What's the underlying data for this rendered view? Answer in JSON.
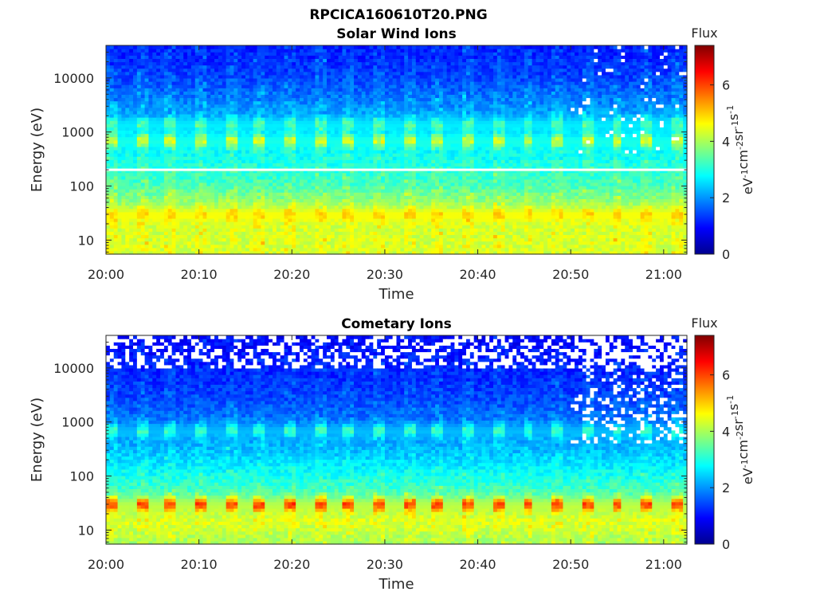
{
  "figure": {
    "title": "RPCICA160610T20.PNG"
  },
  "colormap": {
    "name": "jet",
    "stops": [
      "#00008f",
      "#0000ff",
      "#0080ff",
      "#00ffff",
      "#80ff80",
      "#ffff00",
      "#ff8000",
      "#ff0000",
      "#800000"
    ]
  },
  "chart_data": [
    {
      "type": "heatmap",
      "title": "Solar Wind Ions",
      "xlabel": "Time",
      "ylabel": "Energy (eV)",
      "yscale": "log",
      "x_ticks": [
        "20:00",
        "20:10",
        "20:20",
        "20:30",
        "20:40",
        "20:50",
        "21:00"
      ],
      "x_tick_minutes": [
        0,
        10,
        20,
        30,
        40,
        50,
        60
      ],
      "xlim_minutes": [
        0,
        62.5
      ],
      "y_ticks": [
        "10",
        "100",
        "1000",
        "10000"
      ],
      "y_tick_values": [
        10,
        100,
        1000,
        10000
      ],
      "ylim": [
        5.5,
        40000
      ],
      "colorbar": {
        "label_top": "Flux",
        "units": "eV-1cm-2sr-1s-1",
        "ticks": [
          "0",
          "2",
          "4",
          "6"
        ],
        "tick_values": [
          0,
          2,
          4,
          6
        ],
        "range": [
          0,
          7.4
        ]
      },
      "features": {
        "background_profile": [
          {
            "energy_eV": 6,
            "flux": 4.3
          },
          {
            "energy_eV": 30,
            "flux": 4.3
          },
          {
            "energy_eV": 100,
            "flux": 3.3
          },
          {
            "energy_eV": 1000,
            "flux": 2.5
          },
          {
            "energy_eV": 10000,
            "flux": 1.4
          },
          {
            "energy_eV": 40000,
            "flux": 1.1
          }
        ],
        "white_line_energy_eV": 200,
        "bands": [
          {
            "center_energy_eV": 700,
            "peak_flux": 4.2,
            "periodic": true
          },
          {
            "center_energy_eV": 1400,
            "peak_flux": 3.3,
            "periodic": true
          },
          {
            "center_energy_eV": 30,
            "peak_flux": 4.9,
            "periodic": true
          }
        ],
        "sweep_period_minutes": 3.2,
        "sparse_after_minutes": 50
      }
    },
    {
      "type": "heatmap",
      "title": "Cometary Ions",
      "xlabel": "Time",
      "ylabel": "Energy (eV)",
      "yscale": "log",
      "x_ticks": [
        "20:00",
        "20:10",
        "20:20",
        "20:30",
        "20:40",
        "20:50",
        "21:00"
      ],
      "x_tick_minutes": [
        0,
        10,
        20,
        30,
        40,
        50,
        60
      ],
      "xlim_minutes": [
        0,
        62.5
      ],
      "y_ticks": [
        "10",
        "100",
        "1000",
        "10000"
      ],
      "y_tick_values": [
        10,
        100,
        1000,
        10000
      ],
      "ylim": [
        5.5,
        40000
      ],
      "colorbar": {
        "label_top": "Flux",
        "units": "eV-1cm-2sr-1s-1",
        "ticks": [
          "0",
          "2",
          "4",
          "6"
        ],
        "tick_values": [
          0,
          2,
          4,
          6
        ],
        "range": [
          0,
          7.4
        ]
      },
      "features": {
        "background_profile": [
          {
            "energy_eV": 6,
            "flux": 4.0
          },
          {
            "energy_eV": 15,
            "flux": 4.4
          },
          {
            "energy_eV": 60,
            "flux": 3.2
          },
          {
            "energy_eV": 300,
            "flux": 2.3
          },
          {
            "energy_eV": 3000,
            "flux": 1.4
          },
          {
            "energy_eV": 40000,
            "flux": 0.9
          }
        ],
        "bands": [
          {
            "center_energy_eV": 30,
            "peak_flux": 5.9,
            "periodic": true
          },
          {
            "center_energy_eV": 700,
            "peak_flux": 3.2,
            "periodic": true
          }
        ],
        "sweep_period_minutes": 3.2,
        "sparse_high_energy_above_eV": 10000,
        "sparse_after_minutes": 50
      }
    }
  ]
}
